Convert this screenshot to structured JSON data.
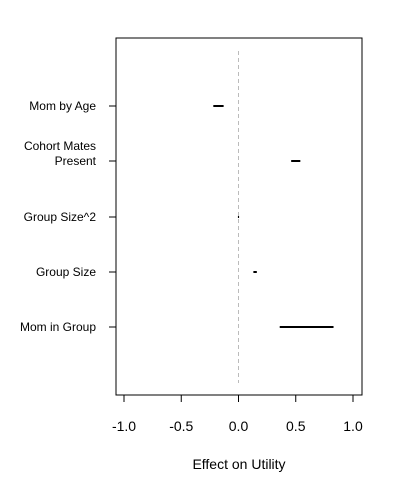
{
  "chart_data": {
    "type": "interval",
    "orientation": "horizontal",
    "xlabel": "Effect on Utility",
    "ylabel": "",
    "xlim": [
      -1.1,
      1.1
    ],
    "xticks": [
      {
        "value": -1.0,
        "label": "-1.0"
      },
      {
        "value": -0.5,
        "label": "-0.5"
      },
      {
        "value": 0.0,
        "label": "0.0"
      },
      {
        "value": 0.5,
        "label": "0.5"
      },
      {
        "value": 1.0,
        "label": "1.0"
      }
    ],
    "reference_line": {
      "value": 0.0,
      "style": "dashed",
      "color": "#bbbbbb"
    },
    "interval_color": "#000000",
    "axis_color": "#000000",
    "categories": [
      {
        "label_lines": [
          "Mom by Age"
        ],
        "low": -0.22,
        "high": -0.13
      },
      {
        "label_lines": [
          "Cohort Mates",
          "Present"
        ],
        "low": 0.46,
        "high": 0.54
      },
      {
        "label_lines": [
          "Group Size^2"
        ],
        "low": -0.005,
        "high": 0.005
      },
      {
        "label_lines": [
          "Group Size"
        ],
        "low": 0.13,
        "high": 0.16
      },
      {
        "label_lines": [
          "Mom in Group"
        ],
        "low": 0.36,
        "high": 0.83
      }
    ]
  }
}
